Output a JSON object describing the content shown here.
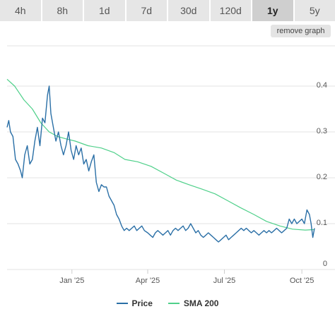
{
  "tabs": [
    "4h",
    "8h",
    "1d",
    "7d",
    "30d",
    "120d",
    "1y",
    "5y"
  ],
  "active_tab": "1y",
  "remove_graph_label": "remove graph",
  "colors": {
    "price": "#2a6fa6",
    "sma": "#4fd08a",
    "grid": "#e3e3e3",
    "axis_text": "#555555"
  },
  "legend": {
    "price": "Price",
    "sma": "SMA 200"
  },
  "chart_data": {
    "type": "line",
    "x_range": [
      "2024-10-16",
      "2025-10-16"
    ],
    "ylim": [
      0,
      0.4
    ],
    "y_ticks": [
      "0",
      "0.1",
      "0.2",
      "0.3",
      "0.4"
    ],
    "x_ticks": [
      {
        "label": "Jan '25",
        "date": "2025-01-01"
      },
      {
        "label": "Apr '25",
        "date": "2025-04-01"
      },
      {
        "label": "Jul '25",
        "date": "2025-07-01"
      },
      {
        "label": "Oct '25",
        "date": "2025-10-01"
      }
    ],
    "grid": true,
    "legend_position": "bottom-center",
    "series": [
      {
        "name": "Price",
        "points": [
          [
            "2024-10-16",
            0.31
          ],
          [
            "2024-10-18",
            0.325
          ],
          [
            "2024-10-20",
            0.3
          ],
          [
            "2024-10-23",
            0.29
          ],
          [
            "2024-10-26",
            0.24
          ],
          [
            "2024-10-29",
            0.23
          ],
          [
            "2024-11-01",
            0.215
          ],
          [
            "2024-11-03",
            0.2
          ],
          [
            "2024-11-06",
            0.25
          ],
          [
            "2024-11-09",
            0.27
          ],
          [
            "2024-11-12",
            0.23
          ],
          [
            "2024-11-15",
            0.24
          ],
          [
            "2024-11-18",
            0.28
          ],
          [
            "2024-11-21",
            0.31
          ],
          [
            "2024-11-24",
            0.27
          ],
          [
            "2024-11-27",
            0.33
          ],
          [
            "2024-11-30",
            0.32
          ],
          [
            "2024-12-03",
            0.38
          ],
          [
            "2024-12-05",
            0.4
          ],
          [
            "2024-12-07",
            0.34
          ],
          [
            "2024-12-10",
            0.31
          ],
          [
            "2024-12-13",
            0.28
          ],
          [
            "2024-12-16",
            0.3
          ],
          [
            "2024-12-19",
            0.27
          ],
          [
            "2024-12-22",
            0.25
          ],
          [
            "2024-12-25",
            0.27
          ],
          [
            "2024-12-28",
            0.3
          ],
          [
            "2024-12-31",
            0.26
          ],
          [
            "2025-01-03",
            0.24
          ],
          [
            "2025-01-06",
            0.27
          ],
          [
            "2025-01-09",
            0.25
          ],
          [
            "2025-01-12",
            0.265
          ],
          [
            "2025-01-15",
            0.23
          ],
          [
            "2025-01-18",
            0.24
          ],
          [
            "2025-01-21",
            0.215
          ],
          [
            "2025-01-24",
            0.235
          ],
          [
            "2025-01-27",
            0.25
          ],
          [
            "2025-01-30",
            0.19
          ],
          [
            "2025-02-02",
            0.17
          ],
          [
            "2025-02-05",
            0.185
          ],
          [
            "2025-02-08",
            0.18
          ],
          [
            "2025-02-11",
            0.18
          ],
          [
            "2025-02-14",
            0.16
          ],
          [
            "2025-02-17",
            0.15
          ],
          [
            "2025-02-20",
            0.14
          ],
          [
            "2025-02-23",
            0.12
          ],
          [
            "2025-02-26",
            0.11
          ],
          [
            "2025-03-01",
            0.095
          ],
          [
            "2025-03-04",
            0.085
          ],
          [
            "2025-03-07",
            0.09
          ],
          [
            "2025-03-10",
            0.085
          ],
          [
            "2025-03-13",
            0.09
          ],
          [
            "2025-03-16",
            0.095
          ],
          [
            "2025-03-19",
            0.085
          ],
          [
            "2025-03-22",
            0.09
          ],
          [
            "2025-03-25",
            0.095
          ],
          [
            "2025-03-28",
            0.085
          ],
          [
            "2025-04-01",
            0.08
          ],
          [
            "2025-04-04",
            0.075
          ],
          [
            "2025-04-07",
            0.07
          ],
          [
            "2025-04-10",
            0.08
          ],
          [
            "2025-04-13",
            0.085
          ],
          [
            "2025-04-16",
            0.08
          ],
          [
            "2025-04-19",
            0.075
          ],
          [
            "2025-04-22",
            0.08
          ],
          [
            "2025-04-25",
            0.085
          ],
          [
            "2025-04-28",
            0.075
          ],
          [
            "2025-05-01",
            0.085
          ],
          [
            "2025-05-04",
            0.09
          ],
          [
            "2025-05-07",
            0.085
          ],
          [
            "2025-05-10",
            0.09
          ],
          [
            "2025-05-13",
            0.095
          ],
          [
            "2025-05-16",
            0.085
          ],
          [
            "2025-05-19",
            0.09
          ],
          [
            "2025-05-22",
            0.1
          ],
          [
            "2025-05-25",
            0.09
          ],
          [
            "2025-05-28",
            0.08
          ],
          [
            "2025-05-31",
            0.085
          ],
          [
            "2025-06-03",
            0.075
          ],
          [
            "2025-06-06",
            0.07
          ],
          [
            "2025-06-09",
            0.075
          ],
          [
            "2025-06-12",
            0.08
          ],
          [
            "2025-06-15",
            0.075
          ],
          [
            "2025-06-18",
            0.07
          ],
          [
            "2025-06-21",
            0.065
          ],
          [
            "2025-06-24",
            0.06
          ],
          [
            "2025-06-27",
            0.065
          ],
          [
            "2025-06-30",
            0.07
          ],
          [
            "2025-07-03",
            0.075
          ],
          [
            "2025-07-06",
            0.065
          ],
          [
            "2025-07-09",
            0.07
          ],
          [
            "2025-07-12",
            0.075
          ],
          [
            "2025-07-15",
            0.08
          ],
          [
            "2025-07-18",
            0.085
          ],
          [
            "2025-07-21",
            0.09
          ],
          [
            "2025-07-24",
            0.085
          ],
          [
            "2025-07-27",
            0.09
          ],
          [
            "2025-07-30",
            0.085
          ],
          [
            "2025-08-02",
            0.08
          ],
          [
            "2025-08-05",
            0.085
          ],
          [
            "2025-08-08",
            0.08
          ],
          [
            "2025-08-11",
            0.075
          ],
          [
            "2025-08-14",
            0.08
          ],
          [
            "2025-08-17",
            0.085
          ],
          [
            "2025-08-20",
            0.08
          ],
          [
            "2025-08-23",
            0.085
          ],
          [
            "2025-08-26",
            0.08
          ],
          [
            "2025-08-29",
            0.085
          ],
          [
            "2025-09-01",
            0.09
          ],
          [
            "2025-09-04",
            0.085
          ],
          [
            "2025-09-07",
            0.08
          ],
          [
            "2025-09-10",
            0.085
          ],
          [
            "2025-09-13",
            0.09
          ],
          [
            "2025-09-16",
            0.11
          ],
          [
            "2025-09-19",
            0.1
          ],
          [
            "2025-09-22",
            0.11
          ],
          [
            "2025-09-25",
            0.1
          ],
          [
            "2025-09-28",
            0.105
          ],
          [
            "2025-10-01",
            0.11
          ],
          [
            "2025-10-04",
            0.1
          ],
          [
            "2025-10-07",
            0.13
          ],
          [
            "2025-10-10",
            0.12
          ],
          [
            "2025-10-12",
            0.1
          ],
          [
            "2025-10-14",
            0.07
          ],
          [
            "2025-10-16",
            0.09
          ]
        ]
      },
      {
        "name": "SMA 200",
        "points": [
          [
            "2024-10-16",
            0.415
          ],
          [
            "2024-10-25",
            0.4
          ],
          [
            "2024-11-05",
            0.37
          ],
          [
            "2024-11-15",
            0.35
          ],
          [
            "2024-11-25",
            0.32
          ],
          [
            "2024-12-05",
            0.3
          ],
          [
            "2024-12-15",
            0.29
          ],
          [
            "2024-12-25",
            0.285
          ],
          [
            "2025-01-05",
            0.28
          ],
          [
            "2025-01-20",
            0.27
          ],
          [
            "2025-02-05",
            0.265
          ],
          [
            "2025-02-20",
            0.255
          ],
          [
            "2025-03-05",
            0.24
          ],
          [
            "2025-03-20",
            0.235
          ],
          [
            "2025-04-05",
            0.225
          ],
          [
            "2025-04-20",
            0.21
          ],
          [
            "2025-05-05",
            0.195
          ],
          [
            "2025-05-20",
            0.185
          ],
          [
            "2025-06-05",
            0.175
          ],
          [
            "2025-06-20",
            0.165
          ],
          [
            "2025-07-05",
            0.15
          ],
          [
            "2025-07-20",
            0.135
          ],
          [
            "2025-08-05",
            0.12
          ],
          [
            "2025-08-20",
            0.105
          ],
          [
            "2025-09-05",
            0.095
          ],
          [
            "2025-09-20",
            0.088
          ],
          [
            "2025-10-05",
            0.086
          ],
          [
            "2025-10-16",
            0.087
          ]
        ]
      }
    ]
  }
}
